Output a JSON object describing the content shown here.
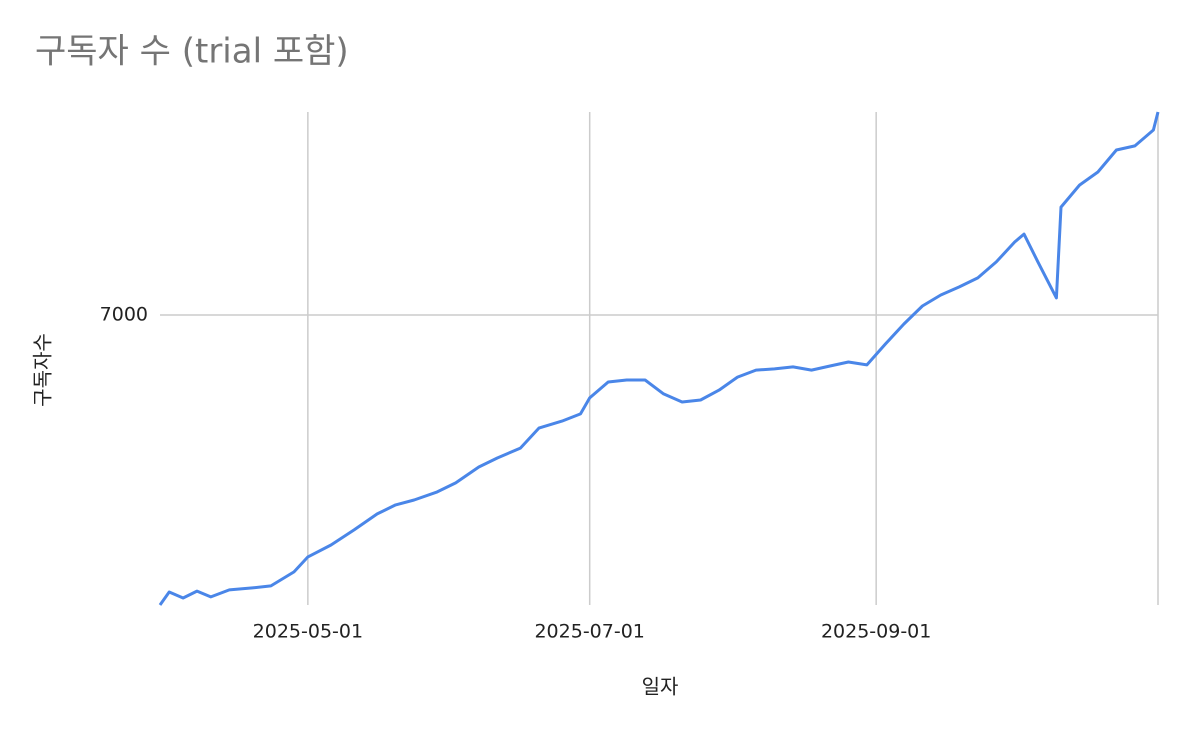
{
  "chart_data": {
    "type": "line",
    "title": "구독자 수 (trial 포함)",
    "x_label": "일자",
    "y_label": "구독자수",
    "x": [
      "2025-03-30",
      "2025-04-01",
      "2025-04-04",
      "2025-04-07",
      "2025-04-10",
      "2025-04-14",
      "2025-04-19",
      "2025-04-23",
      "2025-04-28",
      "2025-05-01",
      "2025-05-06",
      "2025-05-11",
      "2025-05-16",
      "2025-05-20",
      "2025-05-24",
      "2025-05-29",
      "2025-06-02",
      "2025-06-07",
      "2025-06-11",
      "2025-06-16",
      "2025-06-20",
      "2025-06-25",
      "2025-06-29",
      "2025-07-01",
      "2025-07-05",
      "2025-07-09",
      "2025-07-13",
      "2025-07-17",
      "2025-07-21",
      "2025-07-25",
      "2025-07-29",
      "2025-08-02",
      "2025-08-06",
      "2025-08-10",
      "2025-08-14",
      "2025-08-18",
      "2025-08-22",
      "2025-08-26",
      "2025-08-30",
      "2025-09-03",
      "2025-09-07",
      "2025-09-11",
      "2025-09-15",
      "2025-09-19",
      "2025-09-23",
      "2025-09-27",
      "2025-10-01",
      "2025-10-03",
      "2025-10-06",
      "2025-10-10",
      "2025-10-11",
      "2025-10-15",
      "2025-10-19",
      "2025-10-23",
      "2025-10-27",
      "2025-10-31",
      "2025-11-01"
    ],
    "series": [
      {
        "name": "구독자수",
        "color": "#4a86e8",
        "values": [
          6000,
          6045,
          6024,
          6048,
          6028,
          6052,
          6059,
          6066,
          6114,
          6166,
          6207,
          6259,
          6314,
          6345,
          6362,
          6390,
          6421,
          6476,
          6507,
          6541,
          6610,
          6634,
          6659,
          6714,
          6769,
          6776,
          6776,
          6728,
          6700,
          6707,
          6741,
          6786,
          6810,
          6814,
          6821,
          6810,
          6824,
          6838,
          6828,
          6900,
          6969,
          7031,
          7069,
          7097,
          7128,
          7183,
          7252,
          7279,
          7183,
          7059,
          7372,
          7448,
          7493,
          7569,
          7583,
          7638,
          7700
        ]
      }
    ],
    "xlim": [
      "2025-03-30",
      "2025-11-01"
    ],
    "xticks": [
      "2025-05-01",
      "2025-07-01",
      "2025-09-01"
    ],
    "ylim": [
      6000,
      7700
    ],
    "yticks": [
      7000
    ],
    "grid": true
  }
}
